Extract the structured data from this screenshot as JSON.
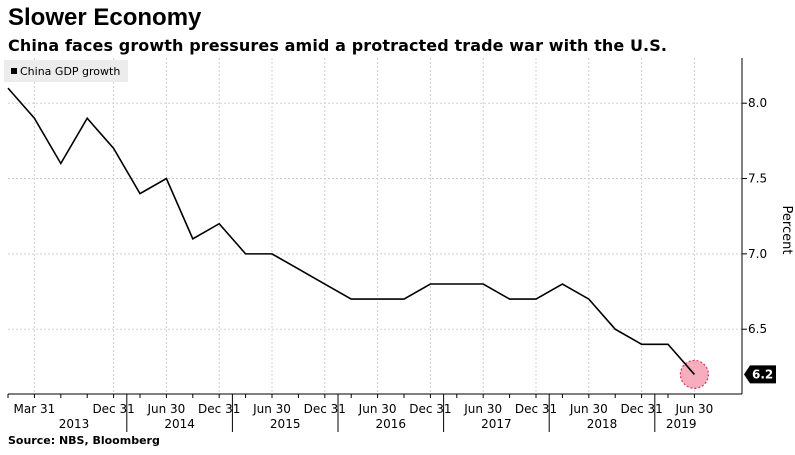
{
  "title": "Slower Economy",
  "subtitle": "China faces growth pressures amid a protracted trade war with the U.S.",
  "source": "Source: NBS, Bloomberg",
  "chart_data": {
    "type": "line",
    "title": "Slower Economy",
    "xlabel": "",
    "ylabel": "Percent",
    "ylim": [
      6.07,
      8.3
    ],
    "yticks": [
      6.5,
      7.0,
      7.5,
      8.0
    ],
    "ytick_labels": [
      "6.5",
      "7.0",
      "7.5",
      "8.0"
    ],
    "legend": {
      "label": "China GDP growth",
      "placement": "top-left"
    },
    "x": [
      "2012-12-31",
      "2013-03-31",
      "2013-06-30",
      "2013-09-30",
      "2013-12-31",
      "2014-03-31",
      "2014-06-30",
      "2014-09-30",
      "2014-12-31",
      "2015-03-31",
      "2015-06-30",
      "2015-09-30",
      "2015-12-31",
      "2016-03-31",
      "2016-06-30",
      "2016-09-30",
      "2016-12-31",
      "2017-03-31",
      "2017-06-30",
      "2017-09-30",
      "2017-12-31",
      "2018-03-31",
      "2018-06-30",
      "2018-09-30",
      "2018-12-31",
      "2019-03-31",
      "2019-06-30"
    ],
    "series": [
      {
        "name": "China GDP growth",
        "color": "#000000",
        "values": [
          8.1,
          7.9,
          7.6,
          7.9,
          7.7,
          7.4,
          7.5,
          7.1,
          7.2,
          7.0,
          7.0,
          6.9,
          6.8,
          6.7,
          6.7,
          6.7,
          6.8,
          6.8,
          6.8,
          6.7,
          6.7,
          6.8,
          6.7,
          6.5,
          6.4,
          6.4,
          6.2
        ]
      }
    ],
    "last_value_label": "6.2",
    "highlight": {
      "index": 26,
      "color": "#f4a0b4",
      "border": "#e0305a"
    },
    "x_tick_labels": [
      {
        "label": "Mar 31",
        "index": 1
      },
      {
        "label": "Dec 31",
        "index": 4
      },
      {
        "label": "Jun 30",
        "index": 6
      },
      {
        "label": "Dec 31",
        "index": 8
      },
      {
        "label": "Jun 30",
        "index": 10
      },
      {
        "label": "Dec 31",
        "index": 12
      },
      {
        "label": "Jun 30",
        "index": 14
      },
      {
        "label": "Dec 31",
        "index": 16
      },
      {
        "label": "Jun 30",
        "index": 18
      },
      {
        "label": "Dec 31",
        "index": 20
      },
      {
        "label": "Jun 30",
        "index": 22
      },
      {
        "label": "Dec 31",
        "index": 24
      },
      {
        "label": "Jun 30",
        "index": 26
      }
    ],
    "year_labels": [
      {
        "label": "2013",
        "from": 1,
        "to": 4
      },
      {
        "label": "2014",
        "from": 5,
        "to": 8
      },
      {
        "label": "2015",
        "from": 9,
        "to": 12
      },
      {
        "label": "2016",
        "from": 13,
        "to": 16
      },
      {
        "label": "2017",
        "from": 17,
        "to": 20
      },
      {
        "label": "2018",
        "from": 21,
        "to": 24
      },
      {
        "label": "2019",
        "from": 25,
        "to": 26
      }
    ],
    "grid": true,
    "colors": {
      "grid": "#d0d0d0",
      "line": "#000000",
      "legend_bg": "#ececec",
      "end_label_bg": "#000000"
    }
  }
}
